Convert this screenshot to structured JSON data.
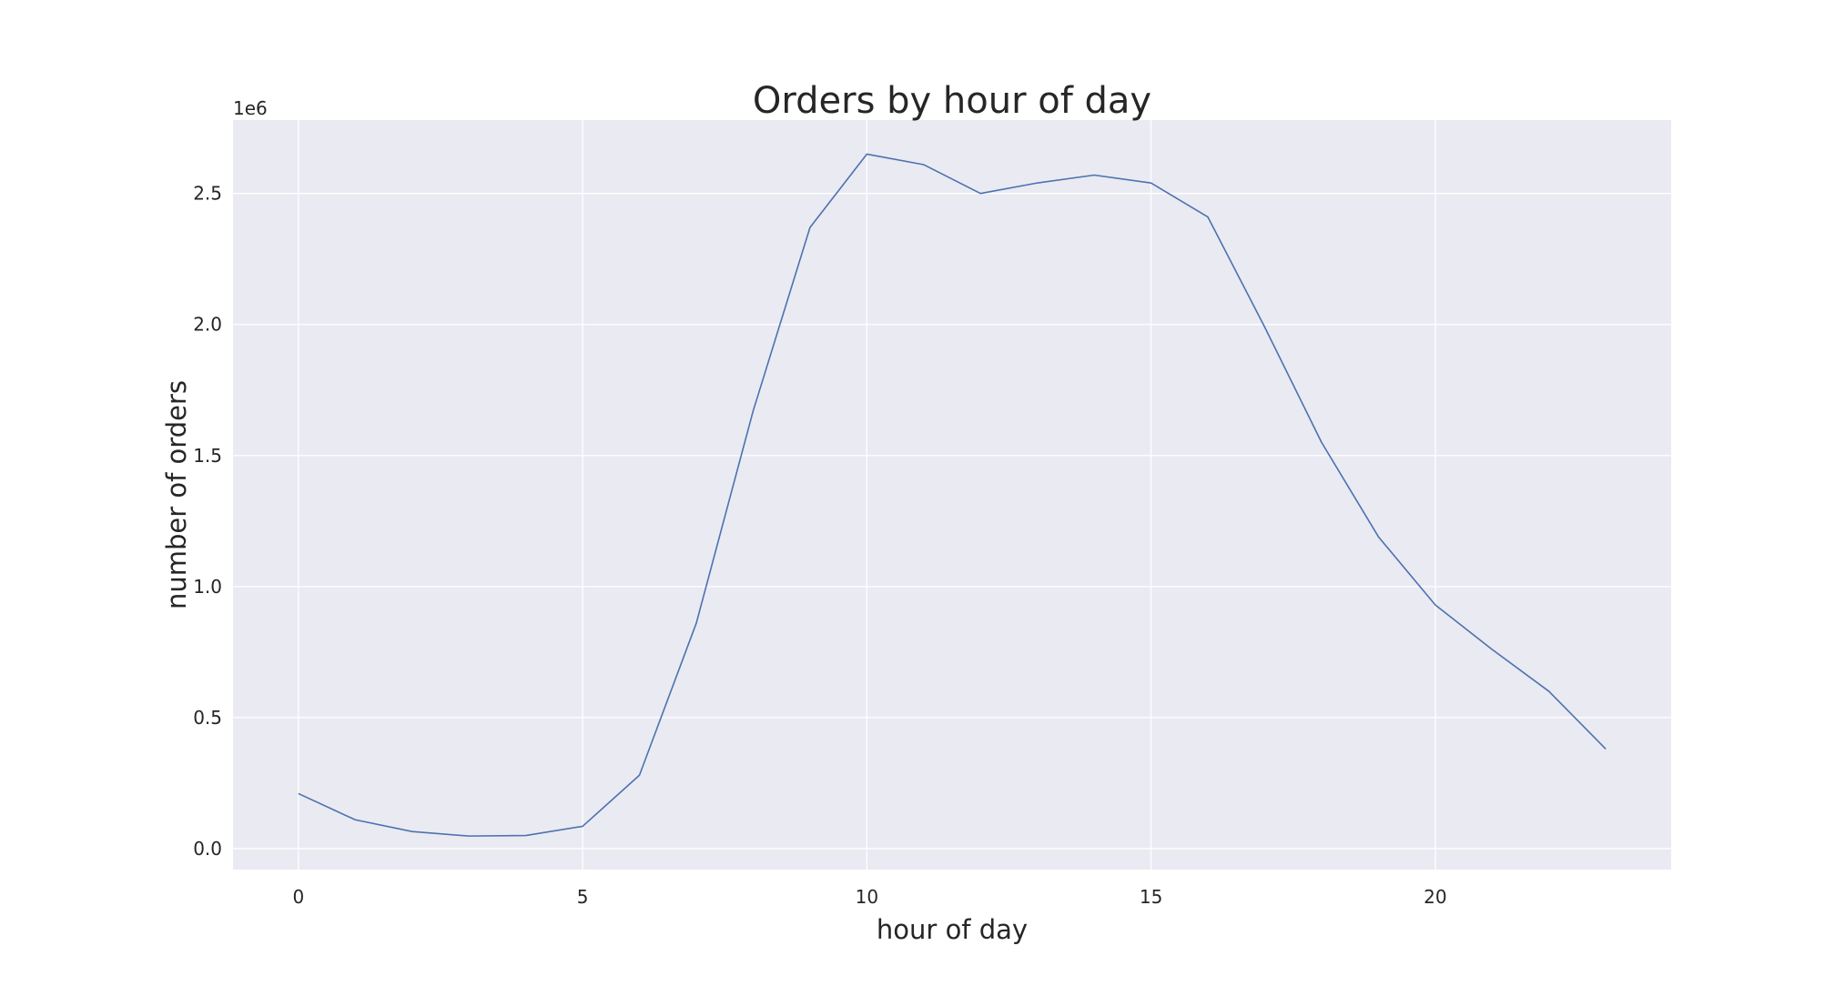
{
  "chart_data": {
    "type": "line",
    "title": "Orders by hour of day",
    "xlabel": "hour of day",
    "ylabel": "number of orders",
    "y_offset_label": "1e6",
    "xlim": [
      -1.15,
      24.15
    ],
    "ylim": [
      -0.08,
      2.78
    ],
    "x_ticks": [
      0,
      5,
      10,
      15,
      20
    ],
    "x_tick_labels": [
      "0",
      "5",
      "10",
      "15",
      "20"
    ],
    "y_ticks": [
      0.0,
      0.5,
      1.0,
      1.5,
      2.0,
      2.5
    ],
    "y_tick_labels": [
      "0.0",
      "0.5",
      "1.0",
      "1.5",
      "2.0",
      "2.5"
    ],
    "y_scale_note": "values in millions (×1e6)",
    "grid": true,
    "style": "seaborn-darkgrid",
    "colors": {
      "plot_background": "#eaeaf2",
      "grid": "#ffffff",
      "line": "#4c72b0",
      "text": "#262626"
    },
    "series": [
      {
        "x": [
          0,
          1,
          2,
          3,
          4,
          5,
          6,
          7,
          8,
          9,
          10,
          11,
          12,
          13,
          14,
          15,
          16,
          17,
          18,
          19,
          20,
          21,
          22,
          23
        ],
        "values": [
          0.21,
          0.11,
          0.065,
          0.048,
          0.05,
          0.085,
          0.28,
          0.86,
          1.67,
          2.37,
          2.65,
          2.61,
          2.5,
          2.54,
          2.57,
          2.54,
          2.41,
          1.99,
          1.55,
          1.19,
          0.93,
          0.76,
          0.6,
          0.38
        ]
      }
    ]
  }
}
